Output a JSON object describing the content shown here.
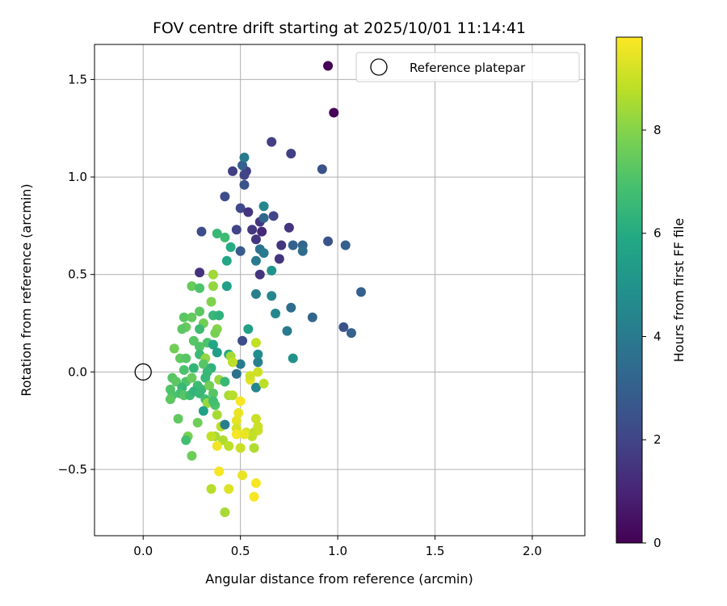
{
  "chart_data": {
    "type": "scatter",
    "title": "FOV centre drift starting at 2025/10/01 11:14:41",
    "xlabel": "Angular distance from reference (arcmin)",
    "ylabel": "Rotation from reference (arcmin)",
    "xlim": [
      -0.25,
      2.27
    ],
    "ylim": [
      -0.84,
      1.68
    ],
    "xticks": [
      0.0,
      0.5,
      1.0,
      1.5,
      2.0
    ],
    "xtick_labels": [
      "0.0",
      "0.5",
      "1.0",
      "1.5",
      "2.0"
    ],
    "yticks": [
      -0.5,
      0.0,
      0.5,
      1.0,
      1.5
    ],
    "ytick_labels": [
      "−0.5",
      "0.0",
      "0.5",
      "1.0",
      "1.5"
    ],
    "grid": true,
    "legend": {
      "position": "top-right",
      "entries": [
        "Reference platepar"
      ]
    },
    "reference_point": {
      "x": 0.0,
      "y": 0.0,
      "label": "Reference platepar"
    },
    "colorbar": {
      "label": "Hours from first FF file",
      "colormap": "viridis",
      "range": [
        0,
        9.8
      ],
      "ticks": [
        0,
        2,
        4,
        6,
        8
      ],
      "tick_labels": [
        "0",
        "2",
        "4",
        "6",
        "8"
      ]
    },
    "points": [
      [
        0.95,
        1.57,
        0.05
      ],
      [
        0.98,
        1.33,
        0.05
      ],
      [
        0.66,
        1.18,
        1.8
      ],
      [
        0.76,
        1.12,
        1.8
      ],
      [
        0.46,
        1.03,
        1.8
      ],
      [
        0.53,
        1.03,
        1.8
      ],
      [
        0.52,
        1.01,
        2.0
      ],
      [
        0.51,
        1.06,
        3.0
      ],
      [
        0.52,
        1.1,
        4.0
      ],
      [
        0.52,
        0.96,
        2.5
      ],
      [
        0.92,
        1.04,
        2.5
      ],
      [
        0.42,
        0.9,
        2.3
      ],
      [
        0.5,
        0.84,
        2.1
      ],
      [
        0.54,
        0.82,
        1.5
      ],
      [
        0.62,
        0.85,
        4.5
      ],
      [
        0.6,
        0.77,
        1.5
      ],
      [
        0.67,
        0.8,
        2.0
      ],
      [
        0.62,
        0.79,
        3.2
      ],
      [
        0.75,
        0.74,
        1.5
      ],
      [
        0.56,
        0.73,
        1.6
      ],
      [
        0.48,
        0.73,
        2.0
      ],
      [
        0.3,
        0.72,
        2.3
      ],
      [
        0.61,
        0.72,
        1.1
      ],
      [
        0.58,
        0.68,
        1.5
      ],
      [
        0.71,
        0.65,
        1.5
      ],
      [
        0.82,
        0.65,
        3.2
      ],
      [
        0.95,
        0.67,
        2.5
      ],
      [
        1.04,
        0.65,
        3.0
      ],
      [
        0.77,
        0.65,
        3.0
      ],
      [
        0.82,
        0.62,
        3.5
      ],
      [
        0.6,
        0.63,
        3.7
      ],
      [
        0.62,
        0.61,
        4.0
      ],
      [
        0.5,
        0.62,
        2.8
      ],
      [
        0.7,
        0.58,
        1.5
      ],
      [
        0.58,
        0.57,
        4.0
      ],
      [
        0.6,
        0.5,
        1.5
      ],
      [
        0.66,
        0.52,
        5.0
      ],
      [
        0.38,
        0.71,
        6.5
      ],
      [
        0.42,
        0.69,
        6.7
      ],
      [
        0.45,
        0.64,
        6.0
      ],
      [
        0.43,
        0.57,
        5.8
      ],
      [
        0.29,
        0.51,
        1.4
      ],
      [
        0.43,
        0.44,
        5.5
      ],
      [
        0.58,
        0.4,
        4.2
      ],
      [
        0.66,
        0.39,
        4.5
      ],
      [
        0.76,
        0.33,
        3.5
      ],
      [
        0.68,
        0.3,
        4.5
      ],
      [
        0.87,
        0.28,
        3.2
      ],
      [
        1.12,
        0.41,
        3.0
      ],
      [
        0.74,
        0.21,
        4.0
      ],
      [
        1.03,
        0.23,
        2.5
      ],
      [
        1.07,
        0.2,
        3.0
      ],
      [
        0.77,
        0.07,
        5.0
      ],
      [
        0.54,
        0.22,
        5.5
      ],
      [
        0.51,
        0.16,
        2.3
      ],
      [
        0.59,
        0.09,
        4.8
      ],
      [
        0.59,
        0.05,
        4.3
      ],
      [
        0.5,
        0.04,
        4.0
      ],
      [
        0.48,
        -0.01,
        3.7
      ],
      [
        0.58,
        -0.08,
        4.5
      ],
      [
        0.36,
        0.5,
        8.4
      ],
      [
        0.25,
        0.44,
        7.5
      ],
      [
        0.29,
        0.43,
        7.0
      ],
      [
        0.36,
        0.44,
        8.2
      ],
      [
        0.35,
        0.36,
        7.9
      ],
      [
        0.36,
        0.29,
        6.5
      ],
      [
        0.39,
        0.29,
        6.3
      ],
      [
        0.29,
        0.31,
        7.3
      ],
      [
        0.21,
        0.28,
        7.3
      ],
      [
        0.25,
        0.28,
        7.4
      ],
      [
        0.31,
        0.25,
        7.7
      ],
      [
        0.29,
        0.22,
        6.7
      ],
      [
        0.38,
        0.22,
        8.0
      ],
      [
        0.37,
        0.2,
        7.8
      ],
      [
        0.22,
        0.23,
        7.5
      ],
      [
        0.2,
        0.22,
        7.3
      ],
      [
        0.16,
        0.12,
        7.7
      ],
      [
        0.26,
        0.16,
        7.2
      ],
      [
        0.29,
        0.13,
        7.1
      ],
      [
        0.33,
        0.15,
        7.0
      ],
      [
        0.36,
        0.14,
        5.8
      ],
      [
        0.38,
        0.1,
        5.5
      ],
      [
        0.29,
        0.09,
        6.6
      ],
      [
        0.44,
        0.09,
        5.9
      ],
      [
        0.19,
        0.07,
        7.4
      ],
      [
        0.22,
        0.07,
        7.2
      ],
      [
        0.32,
        0.07,
        8.2
      ],
      [
        0.31,
        0.04,
        7.2
      ],
      [
        0.35,
        0.02,
        6.3
      ],
      [
        0.33,
        0.0,
        6.5
      ],
      [
        0.26,
        0.02,
        6.4
      ],
      [
        0.21,
        0.01,
        7.0
      ],
      [
        0.45,
        0.08,
        8.4
      ],
      [
        0.46,
        0.05,
        8.8
      ],
      [
        0.58,
        0.15,
        8.9
      ],
      [
        0.59,
        0.0,
        9.1
      ],
      [
        0.55,
        -0.04,
        9.4
      ],
      [
        0.55,
        -0.02,
        9.1
      ],
      [
        0.62,
        -0.06,
        8.8
      ],
      [
        0.15,
        -0.03,
        7.2
      ],
      [
        0.17,
        -0.05,
        7.3
      ],
      [
        0.22,
        -0.05,
        7.0
      ],
      [
        0.25,
        -0.03,
        7.5
      ],
      [
        0.32,
        -0.03,
        6.5
      ],
      [
        0.39,
        -0.04,
        8.3
      ],
      [
        0.42,
        -0.05,
        6.5
      ],
      [
        0.28,
        -0.07,
        6.7
      ],
      [
        0.3,
        -0.09,
        6.6
      ],
      [
        0.34,
        -0.07,
        7.7
      ],
      [
        0.2,
        -0.08,
        6.5
      ],
      [
        0.14,
        -0.09,
        7.1
      ],
      [
        0.19,
        -0.11,
        6.8
      ],
      [
        0.21,
        -0.12,
        7.2
      ],
      [
        0.15,
        -0.12,
        7.0
      ],
      [
        0.14,
        -0.14,
        7.3
      ],
      [
        0.24,
        -0.12,
        6.7
      ],
      [
        0.26,
        -0.1,
        6.4
      ],
      [
        0.29,
        -0.11,
        6.5
      ],
      [
        0.36,
        -0.11,
        7.2
      ],
      [
        0.44,
        -0.12,
        8.5
      ],
      [
        0.46,
        -0.12,
        8.7
      ],
      [
        0.32,
        -0.14,
        6.8
      ],
      [
        0.33,
        -0.16,
        8.3
      ],
      [
        0.37,
        -0.17,
        7.0
      ],
      [
        0.31,
        -0.2,
        5.6
      ],
      [
        0.38,
        -0.22,
        8.5
      ],
      [
        0.36,
        -0.15,
        6.8
      ],
      [
        0.5,
        -0.15,
        9.7
      ],
      [
        0.49,
        -0.21,
        9.5
      ],
      [
        0.4,
        -0.28,
        8.8
      ],
      [
        0.48,
        -0.25,
        9.4
      ],
      [
        0.42,
        -0.27,
        4.2
      ],
      [
        0.48,
        -0.29,
        9.2
      ],
      [
        0.58,
        -0.24,
        9.0
      ],
      [
        0.59,
        -0.28,
        9.0
      ],
      [
        0.57,
        -0.31,
        8.7
      ],
      [
        0.59,
        -0.3,
        9.0
      ],
      [
        0.48,
        -0.32,
        9.7
      ],
      [
        0.53,
        -0.31,
        9.2
      ],
      [
        0.56,
        -0.33,
        8.9
      ],
      [
        0.52,
        -0.32,
        9.5
      ],
      [
        0.37,
        -0.33,
        8.5
      ],
      [
        0.35,
        -0.33,
        8.9
      ],
      [
        0.41,
        -0.35,
        8.6
      ],
      [
        0.38,
        -0.38,
        9.6
      ],
      [
        0.44,
        -0.38,
        8.8
      ],
      [
        0.5,
        -0.39,
        9.0
      ],
      [
        0.57,
        -0.39,
        8.6
      ],
      [
        0.18,
        -0.24,
        7.4
      ],
      [
        0.28,
        -0.26,
        7.6
      ],
      [
        0.23,
        -0.33,
        7.8
      ],
      [
        0.22,
        -0.35,
        6.8
      ],
      [
        0.25,
        -0.43,
        7.6
      ],
      [
        0.39,
        -0.51,
        9.7
      ],
      [
        0.51,
        -0.53,
        9.5
      ],
      [
        0.58,
        -0.57,
        9.7
      ],
      [
        0.35,
        -0.6,
        8.7
      ],
      [
        0.44,
        -0.6,
        9.3
      ],
      [
        0.57,
        -0.64,
        9.7
      ],
      [
        0.42,
        -0.72,
        8.5
      ]
    ]
  }
}
